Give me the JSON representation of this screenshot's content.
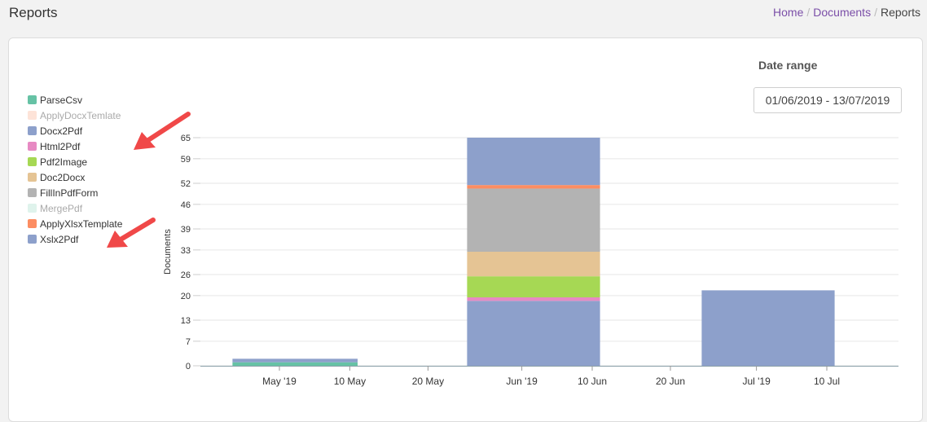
{
  "header": {
    "title": "Reports",
    "breadcrumb": {
      "home": "Home",
      "sep1": "/",
      "documents": "Documents",
      "sep2": "/",
      "current": "Reports"
    }
  },
  "filters": {
    "date_range_label": "Date range",
    "date_range_value": "01/06/2019 - 13/07/2019"
  },
  "legend": [
    {
      "label": "ParseCsv",
      "color": "#66c2a5",
      "active": true
    },
    {
      "label": "ApplyDocxTemlate",
      "color": "#fde3d8",
      "active": false
    },
    {
      "label": "Docx2Pdf",
      "color": "#8da0cb",
      "active": true
    },
    {
      "label": "Html2Pdf",
      "color": "#e78ac3",
      "active": true
    },
    {
      "label": "Pdf2Image",
      "color": "#a6d854",
      "active": true
    },
    {
      "label": "Doc2Docx",
      "color": "#e5c494",
      "active": true
    },
    {
      "label": "FillInPdfForm",
      "color": "#b3b3b3",
      "active": true
    },
    {
      "label": "MergePdf",
      "color": "#dff3ec",
      "active": false
    },
    {
      "label": "ApplyXlsxTemplate",
      "color": "#fc8d62",
      "active": true
    },
    {
      "label": "Xslx2Pdf",
      "color": "#8da0cb",
      "active": true
    }
  ],
  "annotation_color": "#f04848",
  "chart_data": {
    "type": "bar",
    "stacked": true,
    "ylabel": "Documents",
    "yticks": [
      0,
      7,
      13,
      20,
      26,
      33,
      39,
      46,
      52,
      59,
      65
    ],
    "ylim": [
      0,
      65
    ],
    "xlim": [
      "2019-05-01",
      "2019-07-18"
    ],
    "xticks": [
      {
        "label": "May '19",
        "date": "2019-05-01"
      },
      {
        "label": "10 May",
        "date": "2019-05-10"
      },
      {
        "label": "20 May",
        "date": "2019-05-20"
      },
      {
        "label": "Jun '19",
        "date": "2019-06-01"
      },
      {
        "label": "10 Jun",
        "date": "2019-06-10"
      },
      {
        "label": "20 Jun",
        "date": "2019-06-20"
      },
      {
        "label": "Jul '19",
        "date": "2019-07-01"
      },
      {
        "label": "10 Jul",
        "date": "2019-07-10"
      }
    ],
    "periods": [
      {
        "from": "2019-04-25",
        "to": "2019-05-11"
      },
      {
        "from": "2019-05-25",
        "to": "2019-06-11"
      },
      {
        "from": "2019-06-24",
        "to": "2019-07-11"
      }
    ],
    "series": [
      {
        "name": "ParseCsv",
        "color": "#66c2a5",
        "values": [
          1,
          0,
          0
        ]
      },
      {
        "name": "Docx2Pdf",
        "color": "#8da0cb",
        "values": [
          1,
          18.5,
          0
        ]
      },
      {
        "name": "Html2Pdf",
        "color": "#e78ac3",
        "values": [
          0,
          1,
          0
        ]
      },
      {
        "name": "Pdf2Image",
        "color": "#a6d854",
        "values": [
          0,
          6,
          0
        ]
      },
      {
        "name": "Doc2Docx",
        "color": "#e5c494",
        "values": [
          0,
          7,
          0
        ]
      },
      {
        "name": "FillInPdfForm",
        "color": "#b3b3b3",
        "values": [
          0,
          18,
          0
        ]
      },
      {
        "name": "ApplyXlsxTemplate",
        "color": "#fc8d62",
        "values": [
          0,
          1,
          0
        ]
      },
      {
        "name": "Xslx2Pdf",
        "color": "#8da0cb",
        "values": [
          0,
          13.5,
          21.5
        ]
      }
    ]
  }
}
